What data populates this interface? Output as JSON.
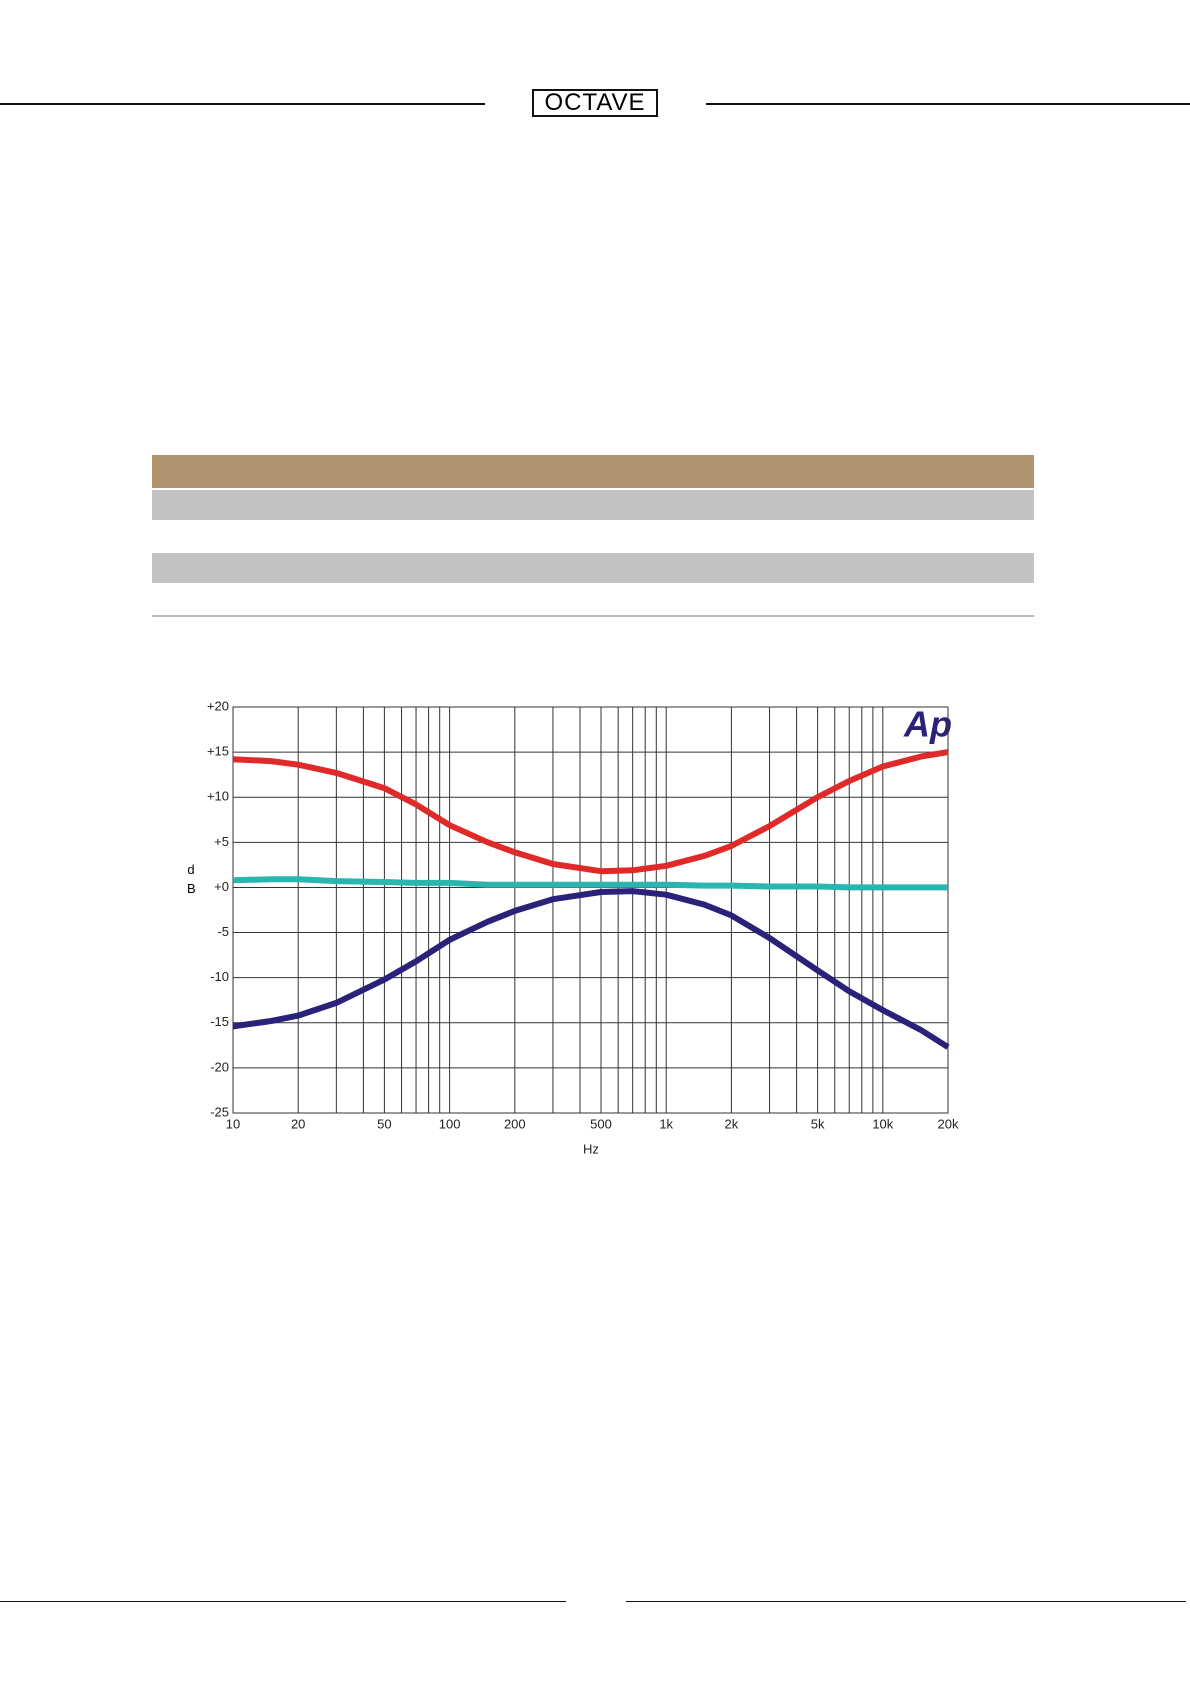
{
  "header": {
    "logo": "OCTAVE"
  },
  "chart_data": {
    "type": "line",
    "xlabel": "Hz",
    "ylabel": "dB",
    "annotation": "Ap",
    "xscale": "log",
    "grid": true,
    "x": [
      10,
      15,
      20,
      30,
      50,
      70,
      100,
      150,
      200,
      300,
      500,
      700,
      1000,
      1500,
      2000,
      3000,
      5000,
      7000,
      10000,
      15000,
      20000
    ],
    "series": [
      {
        "color": "#e02a2a",
        "values": [
          14.2,
          14.0,
          13.6,
          12.7,
          11.0,
          9.2,
          6.9,
          5.0,
          3.9,
          2.6,
          1.8,
          1.9,
          2.4,
          3.5,
          4.6,
          6.8,
          10.0,
          11.8,
          13.4,
          14.5,
          15.0
        ]
      },
      {
        "color": "#2bb5b0",
        "values": [
          0.8,
          0.9,
          0.9,
          0.7,
          0.6,
          0.5,
          0.5,
          0.3,
          0.3,
          0.3,
          0.3,
          0.3,
          0.3,
          0.2,
          0.2,
          0.1,
          0.1,
          0,
          0,
          0,
          0
        ]
      },
      {
        "color": "#2a2179",
        "values": [
          -15.4,
          -14.8,
          -14.2,
          -12.8,
          -10.2,
          -8.2,
          -5.8,
          -3.8,
          -2.6,
          -1.3,
          -0.5,
          -0.4,
          -0.8,
          -1.9,
          -3.1,
          -5.6,
          -9.2,
          -11.5,
          -13.6,
          -15.8,
          -17.7
        ]
      }
    ],
    "xlim": [
      10,
      20000
    ],
    "xticks": [
      10,
      20,
      50,
      100,
      200,
      500,
      {
        "value": 1000,
        "label": "1k"
      },
      {
        "value": 2000,
        "label": "2k"
      },
      {
        "value": 5000,
        "label": "5k"
      },
      {
        "value": 10000,
        "label": "10k"
      },
      {
        "value": 20000,
        "label": "20k"
      }
    ],
    "xminorticks": [
      30,
      40,
      60,
      70,
      80,
      90,
      300,
      400,
      600,
      700,
      800,
      900,
      3000,
      4000,
      6000,
      7000,
      8000,
      9000
    ],
    "ylim": [
      -25,
      20
    ],
    "yticks": [
      {
        "value": 20,
        "label": "+20"
      },
      {
        "value": 15,
        "label": "+15"
      },
      {
        "value": 10,
        "label": "+10"
      },
      {
        "value": 5,
        "label": "+5"
      },
      {
        "value": 0,
        "label": "+0"
      },
      -5,
      -10,
      -15,
      -20,
      -25
    ]
  }
}
